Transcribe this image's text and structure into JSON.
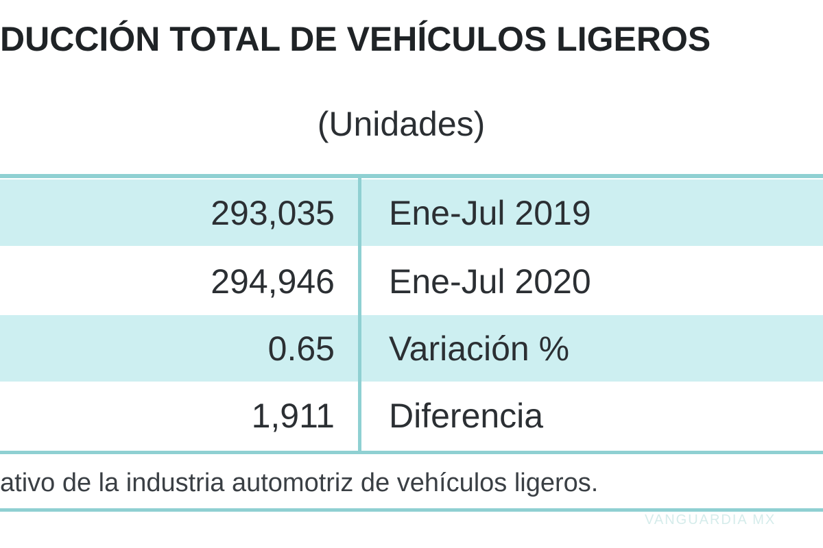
{
  "title": "DUCCIÓN TOTAL DE VEHÍCULOS LIGEROS",
  "subtitle": "(Unidades)",
  "colors": {
    "accent_line": "#8fd0d2",
    "row_shade": "#cdeff1"
  },
  "table": {
    "rows": [
      {
        "value": "293,035",
        "label": "Ene-Jul 2019"
      },
      {
        "value": "294,946",
        "label": "Ene-Jul 2020"
      },
      {
        "value": "0.65",
        "label": "Variación %"
      },
      {
        "value": "1,911",
        "label": "Diferencia"
      }
    ]
  },
  "footnote": "ativo de la industria automotriz de vehículos ligeros.",
  "watermark": "VANGUARDIA MX"
}
